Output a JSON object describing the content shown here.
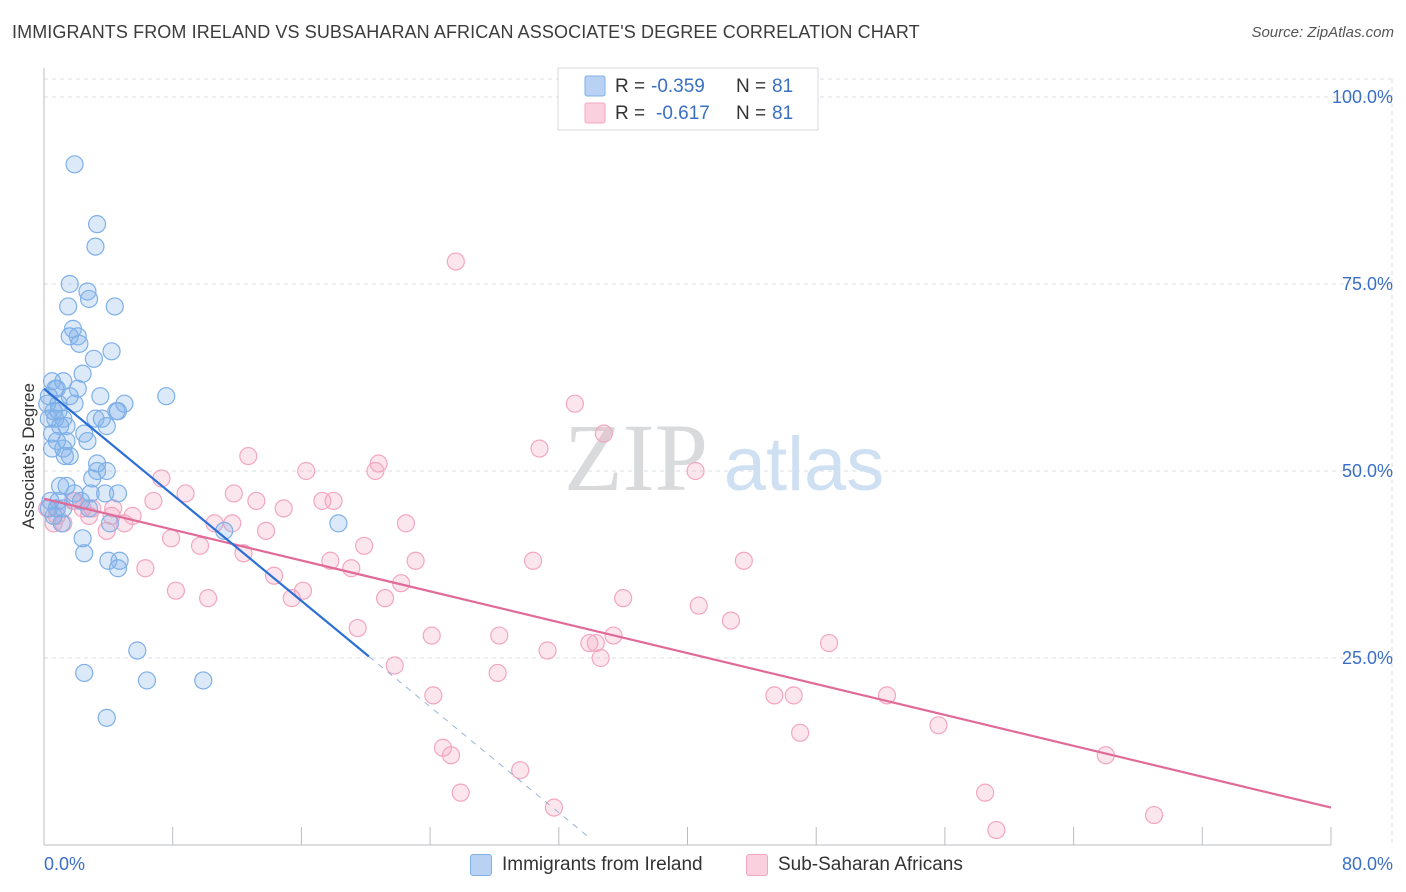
{
  "title": "IMMIGRANTS FROM IRELAND VS SUBSAHARAN AFRICAN ASSOCIATE'S DEGREE CORRELATION CHART",
  "source": "Source: ZipAtlas.com",
  "watermark": {
    "zip": "ZIP",
    "atlas": "atlas"
  },
  "colors": {
    "blue": "#7fb0e8",
    "blue_line": "#2b6fd6",
    "blue_text": "#3a6fc4",
    "pink": "#f3a6c0",
    "pink_line": "#e06a98",
    "grid": "#d9dde3"
  },
  "legend": {
    "rows": [
      {
        "r_label": "R =",
        "r_value": "-0.359",
        "n_label": "N =",
        "n_value": "81"
      },
      {
        "r_label": "R =",
        "r_value": "-0.617",
        "n_label": "N =",
        "n_value": "81"
      }
    ]
  },
  "bottom_legend": {
    "series1": "Immigrants from Ireland",
    "series2": "Sub-Saharan Africans"
  },
  "chart_data": {
    "type": "scatter",
    "ylabel": "Associate's Degree",
    "xlim": [
      0,
      80
    ],
    "ylim": [
      0,
      100
    ],
    "x_tick_labels": [
      "0.0%",
      "80.0%"
    ],
    "y_tick_labels": [
      "100.0%",
      "75.0%",
      "50.0%",
      "25.0%"
    ],
    "y_ticks": [
      100,
      75,
      50,
      25
    ],
    "x_tick_marks": [
      0,
      8,
      16,
      24,
      32,
      40,
      48,
      56,
      64,
      72,
      80
    ],
    "grid": true,
    "series": [
      {
        "name": "Immigrants from Ireland",
        "color": "blue",
        "r": -0.359,
        "n": 81,
        "trend": {
          "x0": 0,
          "y0": 61,
          "x1": 20.2,
          "y1": 25.2,
          "dash_to_x": 34.0,
          "dash_to_y": 0.8
        },
        "points": [
          [
            1.9,
            91
          ],
          [
            3.3,
            83
          ],
          [
            3.2,
            80
          ],
          [
            1.6,
            75
          ],
          [
            2.7,
            74
          ],
          [
            2.8,
            73
          ],
          [
            1.5,
            72
          ],
          [
            4.4,
            72
          ],
          [
            1.6,
            68
          ],
          [
            1.8,
            69
          ],
          [
            2.1,
            68
          ],
          [
            2.2,
            67
          ],
          [
            4.2,
            66
          ],
          [
            5.0,
            59
          ],
          [
            3.1,
            65
          ],
          [
            2.4,
            63
          ],
          [
            1.2,
            62
          ],
          [
            0.5,
            62
          ],
          [
            1.6,
            60
          ],
          [
            0.8,
            61
          ],
          [
            0.3,
            60
          ],
          [
            0.7,
            61
          ],
          [
            0.2,
            59
          ],
          [
            1.9,
            59
          ],
          [
            0.9,
            58
          ],
          [
            3.5,
            60
          ],
          [
            1.2,
            57
          ],
          [
            0.6,
            58
          ],
          [
            0.3,
            57
          ],
          [
            0.7,
            57
          ],
          [
            3.6,
            57
          ],
          [
            4.6,
            58
          ],
          [
            3.2,
            57
          ],
          [
            1.0,
            56
          ],
          [
            4.5,
            58
          ],
          [
            2.5,
            55
          ],
          [
            3.9,
            56
          ],
          [
            0.8,
            54
          ],
          [
            1.4,
            54
          ],
          [
            1.2,
            53
          ],
          [
            0.5,
            53
          ],
          [
            1.3,
            52
          ],
          [
            3.3,
            51
          ],
          [
            3.9,
            50
          ],
          [
            3.3,
            50
          ],
          [
            1.4,
            48
          ],
          [
            1.0,
            48
          ],
          [
            3.8,
            47
          ],
          [
            4.6,
            47
          ],
          [
            2.9,
            47
          ],
          [
            0.9,
            46
          ],
          [
            0.8,
            45
          ],
          [
            0.4,
            46
          ],
          [
            0.3,
            45
          ],
          [
            1.2,
            45
          ],
          [
            2.8,
            45
          ],
          [
            2.3,
            46
          ],
          [
            1.1,
            43
          ],
          [
            0.6,
            44
          ],
          [
            4.1,
            43
          ],
          [
            4.0,
            38
          ],
          [
            18.3,
            43
          ],
          [
            11.2,
            42
          ],
          [
            2.4,
            41
          ],
          [
            2.5,
            39
          ],
          [
            4.7,
            38
          ],
          [
            4.6,
            37
          ],
          [
            5.8,
            26
          ],
          [
            6.4,
            22
          ],
          [
            9.9,
            22
          ],
          [
            2.5,
            23
          ],
          [
            3.9,
            17
          ],
          [
            7.6,
            60
          ],
          [
            2.1,
            61
          ],
          [
            1.4,
            56
          ],
          [
            0.9,
            59
          ],
          [
            2.7,
            54
          ],
          [
            1.6,
            52
          ],
          [
            0.5,
            55
          ],
          [
            3.0,
            49
          ],
          [
            1.9,
            47
          ]
        ]
      },
      {
        "name": "Sub-Saharan Africans",
        "color": "pink",
        "r": -0.617,
        "n": 81,
        "trend": {
          "x0": 0,
          "y0": 46.3,
          "x1": 80,
          "y1": 5
        },
        "points": [
          [
            25.6,
            78
          ],
          [
            33.0,
            59
          ],
          [
            34.8,
            55
          ],
          [
            30.8,
            53
          ],
          [
            12.7,
            52
          ],
          [
            16.3,
            50
          ],
          [
            20.8,
            51
          ],
          [
            40.5,
            50
          ],
          [
            20.6,
            50
          ],
          [
            7.3,
            49
          ],
          [
            11.8,
            47
          ],
          [
            8.8,
            47
          ],
          [
            6.8,
            46
          ],
          [
            13.2,
            46
          ],
          [
            14.9,
            45
          ],
          [
            17.3,
            46
          ],
          [
            18.0,
            46
          ],
          [
            1.8,
            46
          ],
          [
            3.0,
            45
          ],
          [
            2.4,
            45
          ],
          [
            4.2,
            44
          ],
          [
            5.5,
            44
          ],
          [
            0.8,
            44
          ],
          [
            1.2,
            43
          ],
          [
            10.6,
            43
          ],
          [
            11.7,
            43
          ],
          [
            22.5,
            43
          ],
          [
            13.8,
            42
          ],
          [
            3.9,
            42
          ],
          [
            7.9,
            41
          ],
          [
            9.7,
            40
          ],
          [
            12.4,
            39
          ],
          [
            19.9,
            40
          ],
          [
            17.8,
            38
          ],
          [
            23.1,
            38
          ],
          [
            30.4,
            38
          ],
          [
            6.3,
            37
          ],
          [
            43.5,
            38
          ],
          [
            19.1,
            37
          ],
          [
            14.3,
            36
          ],
          [
            22.2,
            35
          ],
          [
            8.2,
            34
          ],
          [
            16.1,
            34
          ],
          [
            21.2,
            33
          ],
          [
            15.4,
            33
          ],
          [
            10.2,
            33
          ],
          [
            36.0,
            33
          ],
          [
            40.7,
            32
          ],
          [
            42.7,
            30
          ],
          [
            19.5,
            29
          ],
          [
            24.1,
            28
          ],
          [
            28.3,
            28
          ],
          [
            35.4,
            28
          ],
          [
            33.9,
            27
          ],
          [
            48.8,
            27
          ],
          [
            31.3,
            26
          ],
          [
            34.3,
            27
          ],
          [
            34.6,
            25
          ],
          [
            21.8,
            24
          ],
          [
            28.2,
            23
          ],
          [
            45.4,
            20
          ],
          [
            24.2,
            20
          ],
          [
            46.6,
            20
          ],
          [
            52.4,
            20
          ],
          [
            55.6,
            16
          ],
          [
            47.0,
            15
          ],
          [
            66.0,
            12
          ],
          [
            24.8,
            13
          ],
          [
            25.3,
            12
          ],
          [
            29.6,
            10
          ],
          [
            25.9,
            7
          ],
          [
            58.5,
            7
          ],
          [
            31.7,
            5
          ],
          [
            69.0,
            4
          ],
          [
            59.2,
            2
          ],
          [
            0.6,
            43
          ],
          [
            1.9,
            46
          ],
          [
            2.8,
            44
          ],
          [
            5.0,
            43
          ],
          [
            4.3,
            45
          ],
          [
            0.2,
            45
          ]
        ]
      }
    ]
  }
}
